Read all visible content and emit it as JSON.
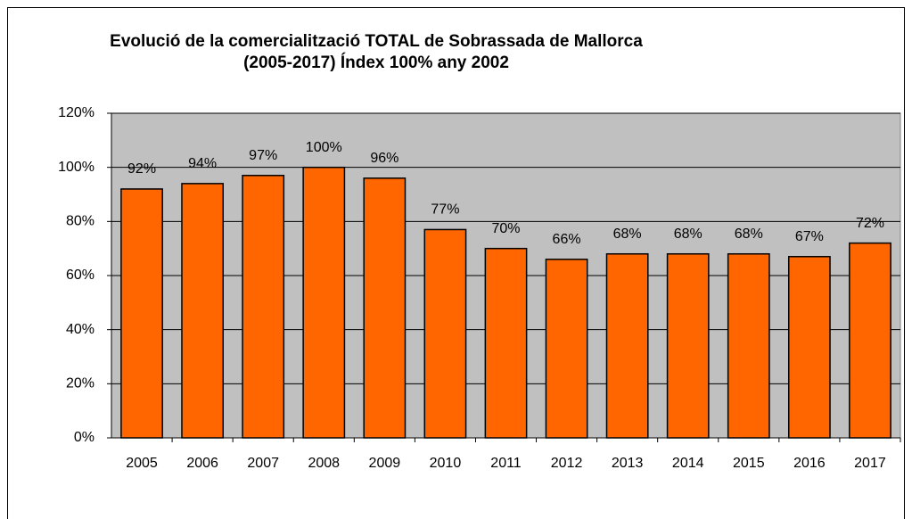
{
  "chart_data": {
    "type": "bar",
    "title": "Evolució de la comercialització TOTAL de Sobrassada de Mallorca",
    "subtitle": "(2005-2017) Índex 100% any 2002",
    "categories": [
      "2005",
      "2006",
      "2007",
      "2008",
      "2009",
      "2010",
      "2011",
      "2012",
      "2013",
      "2014",
      "2015",
      "2016",
      "2017"
    ],
    "values": [
      92,
      94,
      97,
      100,
      96,
      77,
      70,
      66,
      68,
      68,
      68,
      67,
      72
    ],
    "value_labels": [
      "92%",
      "94%",
      "97%",
      "100%",
      "96%",
      "77%",
      "70%",
      "66%",
      "68%",
      "68%",
      "68%",
      "67%",
      "72%"
    ],
    "color": "#ff6600",
    "ylim": [
      0,
      120
    ],
    "yticks": [
      {
        "value": 0,
        "label": "0%"
      },
      {
        "value": 20,
        "label": "20%"
      },
      {
        "value": 40,
        "label": "40%"
      },
      {
        "value": 60,
        "label": "60%"
      },
      {
        "value": 80,
        "label": "80%"
      },
      {
        "value": 100,
        "label": "100%"
      },
      {
        "value": 120,
        "label": "120%"
      }
    ],
    "grid": true
  }
}
